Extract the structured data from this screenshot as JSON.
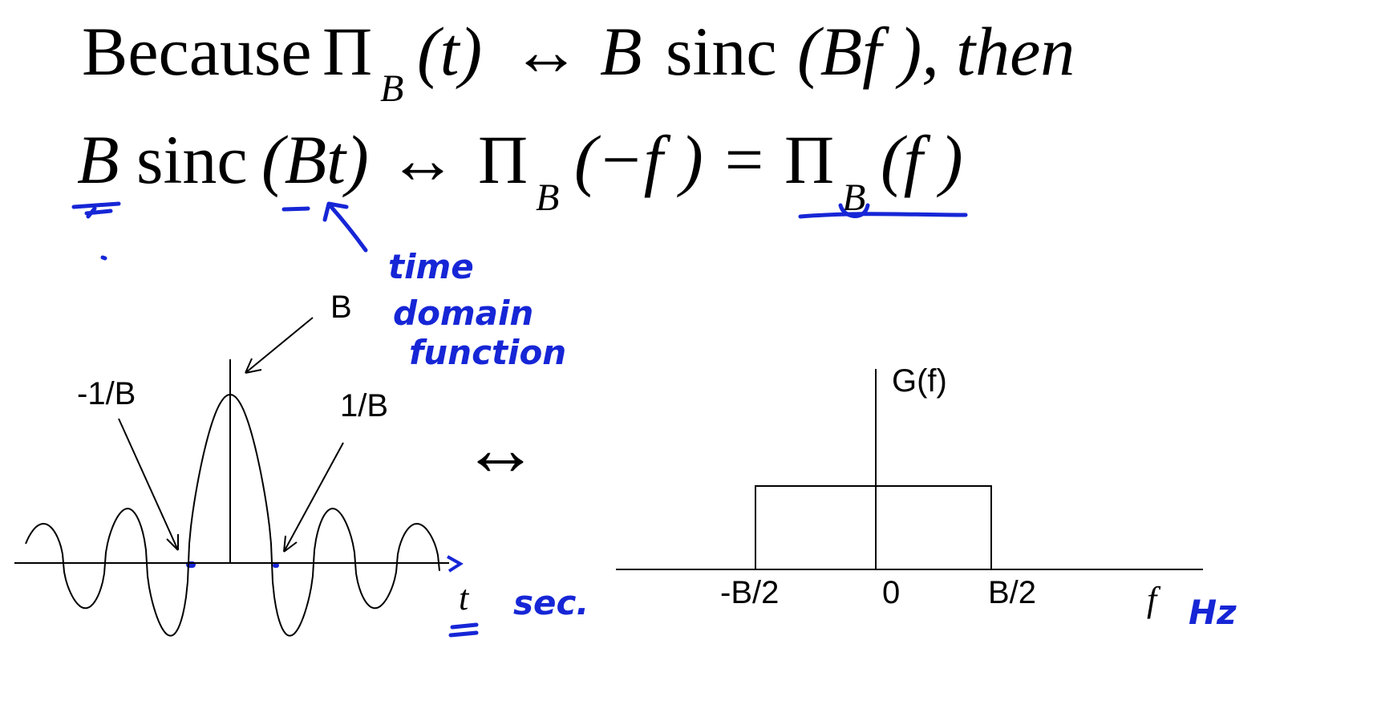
{
  "equation_line_1": {
    "prefix": "Because",
    "pi": "Π",
    "sub_b": "B",
    "lhs_arg": "(t)",
    "arrow": "↔",
    "b": "B",
    "sinc": "sinc",
    "rhs_arg": "(Bf ), then"
  },
  "equation_line_2": {
    "b": "B",
    "sinc": "sinc",
    "lhs_arg": "(Bt)",
    "arrow": "↔",
    "pi": "Π",
    "sub_b": "B",
    "mid_arg": "(−f ) =",
    "pi_2": "Π",
    "sub_b_2": "B",
    "rhs_arg": "(f )"
  },
  "annotations": {
    "time_domain": [
      "time",
      "domain",
      "function"
    ],
    "sec": "sec.",
    "hz": "Hz"
  },
  "sinc_plot": {
    "peak_label": "B",
    "left_zero_label": "-1/B",
    "right_zero_label": "1/B",
    "axis_label": "t"
  },
  "transform_arrow": "↔",
  "rect_plot": {
    "y_label": "G(f)",
    "tick_left": "-B/2",
    "tick_zero": "0",
    "tick_right": "B/2",
    "axis_label": "f"
  },
  "colors": {
    "ink": "#000000",
    "pen": "#1626d6"
  }
}
